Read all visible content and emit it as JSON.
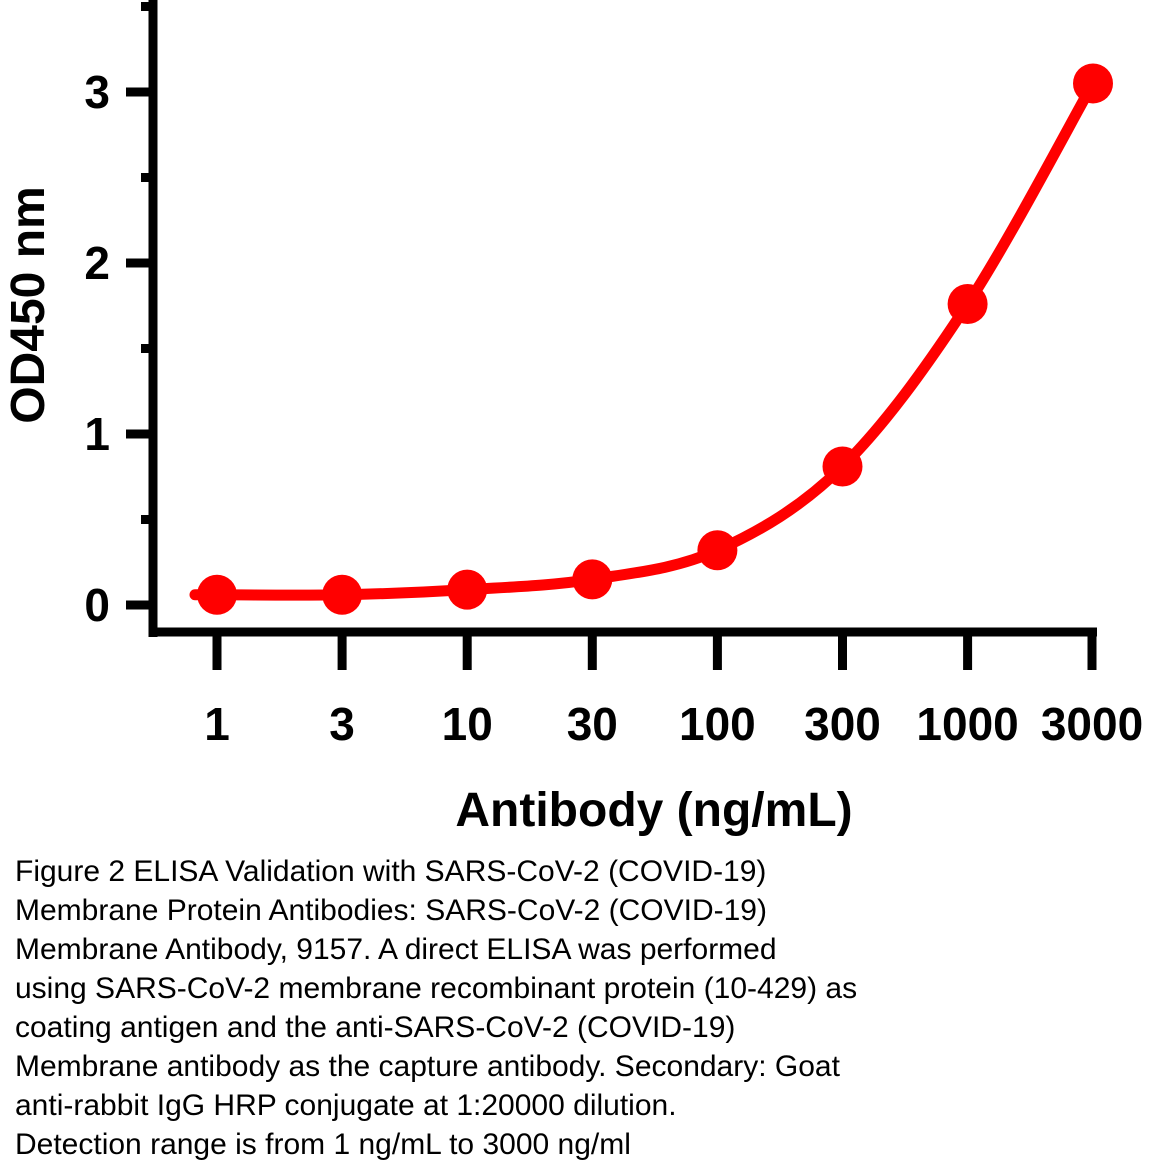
{
  "chart_data": {
    "type": "line",
    "title": "",
    "xlabel": "Antibody (ng/mL)",
    "ylabel": "OD450 nm",
    "xscale": "log",
    "x": [
      1,
      3,
      10,
      30,
      100,
      300,
      1000,
      3000
    ],
    "categories": [
      "1",
      "3",
      "10",
      "30",
      "100",
      "300",
      "1000",
      "3000"
    ],
    "ylim": [
      0,
      3.5
    ],
    "yticks": [
      "0",
      "1",
      "2",
      "3"
    ],
    "grid": false,
    "series": [
      {
        "name": "SARS-CoV-2 (COVID-19) Membrane Antibody, 9157",
        "values": [
          0.06,
          0.06,
          0.09,
          0.15,
          0.32,
          0.81,
          1.76,
          3.05
        ],
        "color": "#ff0000"
      }
    ]
  },
  "caption": {
    "lines": [
      "Figure 2 ELISA Validation with SARS-CoV-2 (COVID-19)",
      "Membrane Protein Antibodies: SARS-CoV-2 (COVID-19)",
      "Membrane Antibody, 9157. A direct ELISA was performed",
      "using SARS-CoV-2 membrane recombinant protein (10-429) as",
      "coating antigen and the anti-SARS-CoV-2 (COVID-19)",
      "Membrane antibody as the capture antibody. Secondary: Goat",
      "anti-rabbit IgG HRP conjugate at 1:20000 dilution.",
      "Detection range is from 1 ng/mL to 3000 ng/ml"
    ]
  }
}
